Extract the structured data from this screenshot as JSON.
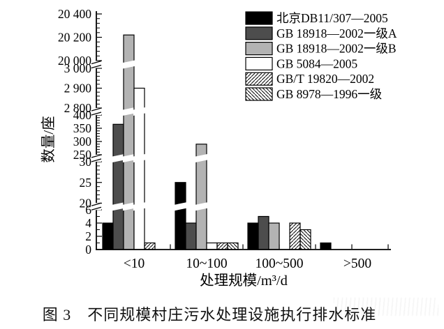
{
  "figure": {
    "caption": "图 3　不同规模村庄污水处理设施执行排水标准"
  },
  "chart_data": {
    "type": "bar",
    "title": "",
    "xlabel": "处理规模/m³/d",
    "ylabel": "数量/座",
    "categories": [
      "<10",
      "10~100",
      "100~500",
      ">500"
    ],
    "series": [
      {
        "name": "北京DB11/307—2005",
        "style": "solid",
        "color": "#000000",
        "values": [
          4,
          25,
          4,
          1
        ]
      },
      {
        "name": "GB 18918—2002一级A",
        "style": "solid",
        "color": "#4d4d4d",
        "values": [
          365,
          4,
          5,
          0
        ]
      },
      {
        "name": "GB 18918—2002一级B",
        "style": "solid",
        "color": "#b3b3b3",
        "values": [
          20220,
          290,
          4,
          0
        ]
      },
      {
        "name": "GB 5084—2005",
        "style": "solid",
        "color": "#ffffff",
        "values": [
          2900,
          1,
          0,
          0
        ]
      },
      {
        "name": "GB/T 19820—2002",
        "style": "hatch-forward",
        "color": "#ffffff",
        "values": [
          1,
          1,
          4,
          0
        ]
      },
      {
        "name": "GB 8978—1996一级",
        "style": "hatch-backward",
        "color": "#ffffff",
        "values": [
          0,
          1,
          3,
          0
        ]
      }
    ],
    "y_axis": {
      "broken": true,
      "segments": [
        {
          "min": 0,
          "max": 6,
          "major_ticks": [
            0,
            2,
            4,
            6
          ],
          "minor_step": 1
        },
        {
          "min": 20,
          "max": 30,
          "major_ticks": [
            20,
            25,
            30
          ],
          "minor_step": 1
        },
        {
          "min": 250,
          "max": 400,
          "major_ticks": [
            250,
            300,
            350,
            400
          ],
          "minor_step": 10
        },
        {
          "min": 2800,
          "max": 3000,
          "major_ticks": [
            2800,
            2900,
            3000
          ],
          "minor_step": 20
        },
        {
          "min": 20000,
          "max": 20400,
          "major_ticks": [
            20000,
            20200,
            20400
          ],
          "minor_step": 40
        }
      ],
      "tick_label_format": "space-thousands"
    },
    "legend_position": "top-right",
    "grid": false,
    "axis_color": "#000000",
    "background_color": "#ffffff"
  }
}
